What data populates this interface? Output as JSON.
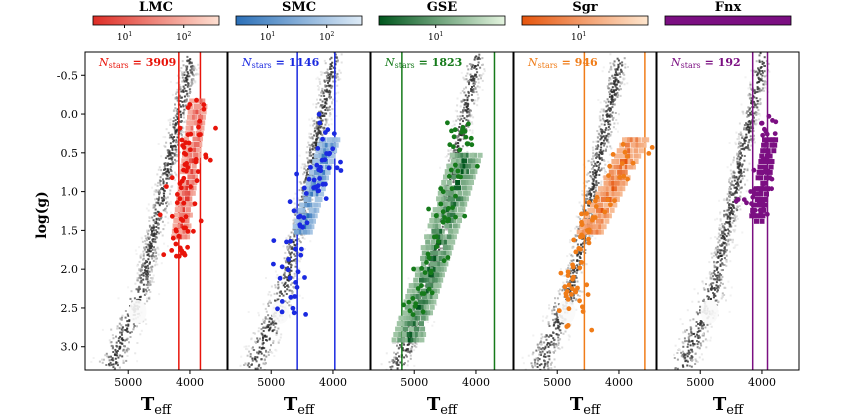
{
  "figure": {
    "ylabel": "log(g)",
    "y_ticks": [
      "-0.5",
      "0.0",
      "0.5",
      "1.0",
      "1.5",
      "2.0",
      "2.5",
      "3.0"
    ],
    "x_tick_labels": [
      "5000",
      "4000"
    ]
  },
  "chart_data": [
    {
      "type": "heatmap",
      "title": "LMC",
      "color": "#e8140a",
      "n_stars_label": "N",
      "n_stars_sub": "stars",
      "n_stars_value": "= 3909",
      "cb_ticks": [
        "10",
        "10"
      ],
      "cb_exps": [
        "1",
        "2"
      ],
      "cb_cmap": [
        "#fee0d2",
        "#de2d26"
      ],
      "xlabel": "T",
      "xlabel_sub": "eff",
      "xlim": [
        5700,
        3400
      ],
      "ylim": [
        3.3,
        -0.8
      ],
      "vlines": [
        4180,
        3830
      ],
      "blob": {
        "teff": [
          4200,
          3900
        ],
        "logg": [
          -0.2,
          1.6
        ]
      },
      "scatter": {
        "teff_range": [
          5600,
          3750
        ],
        "logg_range": [
          -0.2,
          1.9
        ]
      }
    },
    {
      "type": "heatmap",
      "title": "SMC",
      "color": "#1a29e0",
      "n_stars_label": "N",
      "n_stars_sub": "stars",
      "n_stars_value": "= 1146",
      "cb_ticks": [
        "10",
        "10"
      ],
      "cb_exps": [
        "1",
        "2"
      ],
      "cb_cmap": [
        "#deebf7",
        "#2b70b8"
      ],
      "xlabel": "T",
      "xlabel_sub": "eff",
      "xlim": [
        5700,
        3400
      ],
      "ylim": [
        3.3,
        -0.8
      ],
      "vlines": [
        4580,
        3970
      ],
      "blob": {
        "teff": [
          4550,
          4100
        ],
        "logg": [
          0.3,
          1.5
        ]
      },
      "scatter": {
        "teff_range": [
          4700,
          3950
        ],
        "logg_range": [
          0.0,
          2.6
        ]
      }
    },
    {
      "type": "heatmap",
      "title": "GSE",
      "color": "#157a1a",
      "n_stars_label": "N",
      "n_stars_sub": "stars",
      "n_stars_value": "= 1823",
      "cb_ticks": [
        "10"
      ],
      "cb_exps": [
        "1"
      ],
      "cb_cmap": [
        "#e5f5e0",
        "#00561d"
      ],
      "xlabel": "T",
      "xlabel_sub": "eff",
      "xlim": [
        5700,
        3400
      ],
      "ylim": [
        3.3,
        -0.8
      ],
      "vlines": [
        5200,
        3700
      ],
      "blob": {
        "teff": [
          5150,
          4200
        ],
        "logg": [
          0.5,
          2.9
        ]
      },
      "scatter": {
        "teff_range": [
          5600,
          3900
        ],
        "logg_range": [
          0.1,
          2.6
        ]
      }
    },
    {
      "type": "heatmap",
      "title": "Sgr",
      "color": "#f07c18",
      "n_stars_label": "N",
      "n_stars_sub": "stars",
      "n_stars_value": "= 946",
      "cb_ticks": [
        "10"
      ],
      "cb_exps": [
        "1"
      ],
      "cb_cmap": [
        "#fee6ce",
        "#e6550d"
      ],
      "xlabel": "T",
      "xlabel_sub": "eff",
      "xlim": [
        5700,
        3400
      ],
      "ylim": [
        3.3,
        -0.8
      ],
      "vlines": [
        4560,
        3580
      ],
      "blob": {
        "teff": [
          4520,
          3780
        ],
        "logg": [
          0.3,
          1.5
        ]
      },
      "scatter": {
        "teff_range": [
          4900,
          3700
        ],
        "logg_range": [
          0.2,
          2.8
        ]
      }
    },
    {
      "type": "heatmap",
      "title": "Fnx",
      "color": "#7b0f82",
      "n_stars_label": "N",
      "n_stars_sub": "stars",
      "n_stars_value": "= 192",
      "cb_ticks": [],
      "cb_exps": [],
      "cb_cmap": [
        "#7b0f82",
        "#7b0f82"
      ],
      "xlabel": "T",
      "xlabel_sub": "eff",
      "xlim": [
        5700,
        3400
      ],
      "ylim": [
        3.3,
        -0.8
      ],
      "vlines": [
        4150,
        3910
      ],
      "blob": {
        "teff": [
          4150,
          3920
        ],
        "logg": [
          0.3,
          1.4
        ]
      },
      "scatter": {
        "teff_range": [
          4200,
          3800
        ],
        "logg_range": [
          0.0,
          1.3
        ]
      }
    }
  ],
  "colors": {
    "background_density_dark": "#111111",
    "background_density_light": "#f0f0f0",
    "scatter_marker_edge": "none"
  }
}
